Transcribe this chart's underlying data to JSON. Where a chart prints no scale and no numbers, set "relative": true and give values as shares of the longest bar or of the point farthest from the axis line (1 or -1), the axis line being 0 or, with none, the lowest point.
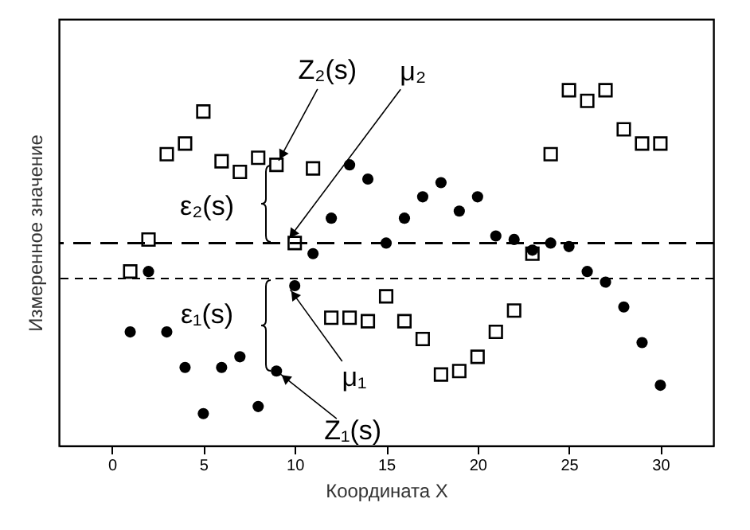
{
  "chart_data": {
    "type": "scatter",
    "relative": true,
    "xlabel": "Координата X",
    "ylabel": "Измеренное значение",
    "x": [
      1,
      2,
      3,
      4,
      5,
      6,
      7,
      8,
      9,
      10,
      11,
      12,
      13,
      14,
      15,
      16,
      17,
      18,
      19,
      20,
      21,
      22,
      23,
      24,
      25,
      26,
      27,
      28,
      29,
      30
    ],
    "xlim": [
      -2.9,
      32.9
    ],
    "xticks": [
      0,
      5,
      10,
      15,
      20,
      25,
      30
    ],
    "grid": false,
    "series": [
      {
        "color": "#000000",
        "marker": "circle",
        "values": [
          0.32,
          0.49,
          0.32,
          0.22,
          0.09,
          0.22,
          0.25,
          0.11,
          0.21,
          0.45,
          0.54,
          0.64,
          0.79,
          0.75,
          0.57,
          0.64,
          0.7,
          0.74,
          0.66,
          0.7,
          0.59,
          0.58,
          0.55,
          0.57,
          0.56,
          0.49,
          0.46,
          0.39,
          0.29,
          0.17
        ]
      },
      {
        "color": "#000000",
        "marker": "square",
        "values": [
          0.49,
          0.58,
          0.82,
          0.85,
          0.94,
          0.8,
          0.77,
          0.81,
          0.79,
          0.57,
          0.78,
          0.36,
          0.36,
          0.35,
          0.42,
          0.35,
          0.3,
          0.2,
          0.21,
          0.25,
          0.32,
          0.38,
          0.54,
          0.82,
          1.0,
          0.97,
          1.0,
          0.89,
          0.85,
          0.85
        ]
      }
    ],
    "ref_lines": [
      {
        "axis": "y",
        "value": 0.57,
        "line_style": "dashed",
        "color": "#000000"
      },
      {
        "axis": "y",
        "value": 0.47,
        "line_style": "dashed",
        "color": "#000000"
      }
    ],
    "annotations": [
      {
        "text": "Z₂(s)",
        "x": 9,
        "y": 0.79
      },
      {
        "text": "μ₂",
        "x": 9.5,
        "y": 0.57
      },
      "ε₂(s)",
      "ε₁(s)",
      {
        "text": "μ₁",
        "x": 9.6,
        "y": 0.45
      },
      {
        "text": "Z₁(s)",
        "x": 9,
        "y": 0.21
      }
    ]
  }
}
